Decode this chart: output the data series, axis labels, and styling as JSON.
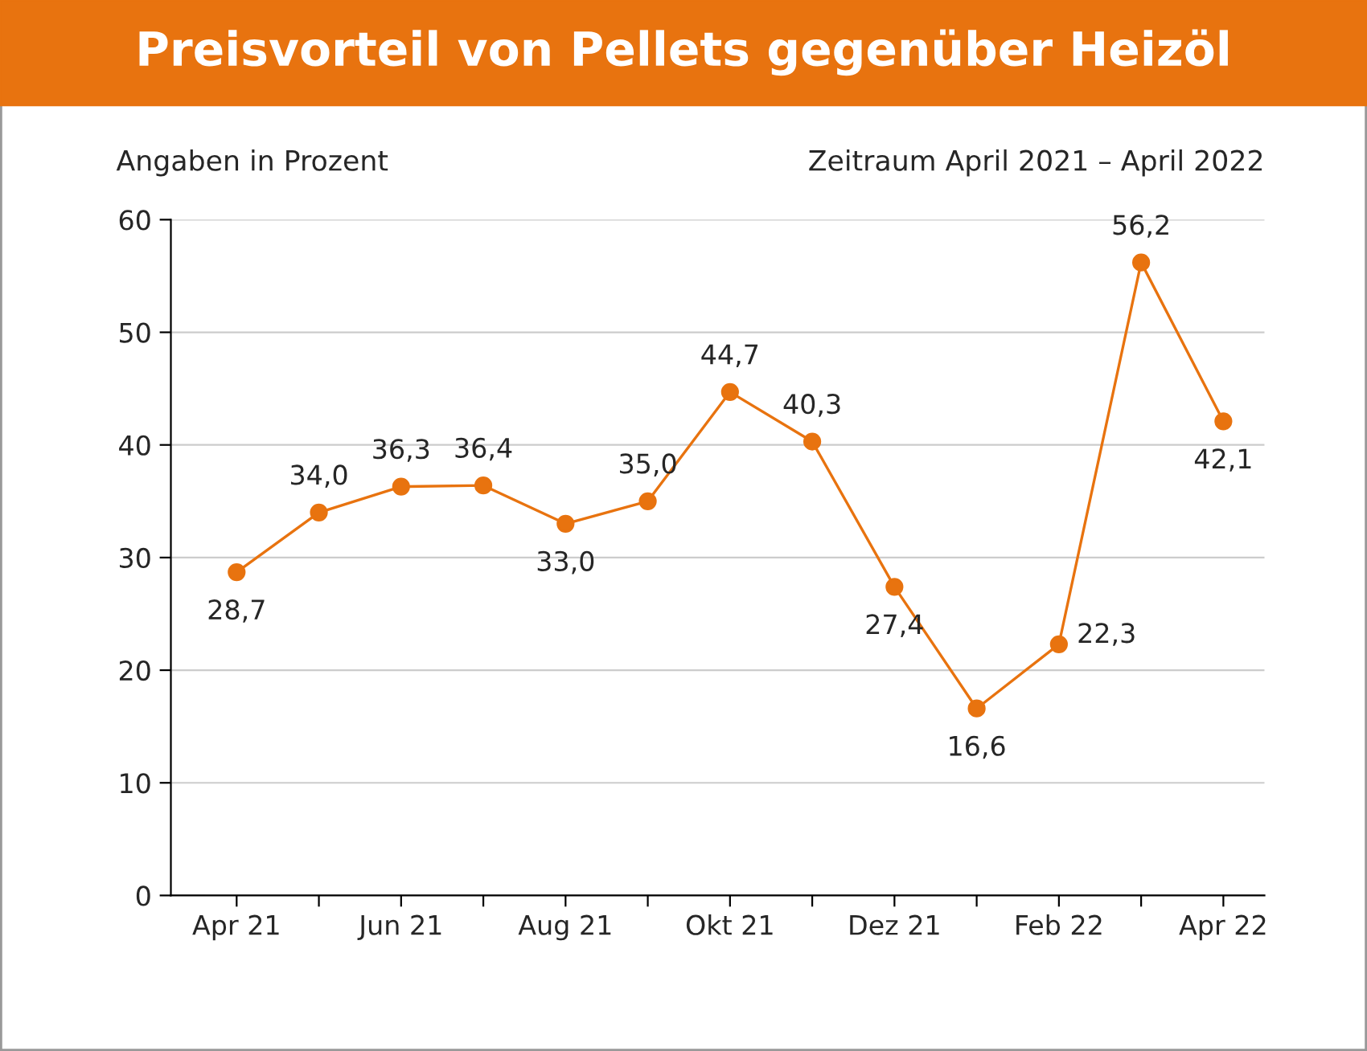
{
  "chart_data": {
    "type": "line",
    "title": "Preisvorteil von Pellets gegenüber Heizöl",
    "subtitle": "Angaben in Prozent",
    "annotations": [
      "Zeitraum April 2021 – April 2022"
    ],
    "categories": [
      "Apr 21",
      null,
      "Jun 21",
      null,
      "Aug 21",
      null,
      "Okt 21",
      null,
      "Dez 21",
      null,
      "Feb 22",
      null,
      "Apr 22"
    ],
    "series": [
      {
        "color": "#e8730f",
        "values": [
          28.7,
          34.0,
          36.3,
          36.4,
          33.0,
          35.0,
          44.7,
          40.3,
          27.4,
          16.6,
          22.3,
          56.2,
          42.1
        ],
        "value_labels": [
          "28,7",
          "34,0",
          "36,3",
          "36,4",
          "33,0",
          "35,0",
          "44,7",
          "40,3",
          "27,4",
          "16,6",
          "22,3",
          "56,2",
          "42,1"
        ]
      }
    ],
    "ylim": [
      0,
      60
    ],
    "yticks": [
      0,
      10,
      20,
      30,
      40,
      50,
      60
    ],
    "grid": "y",
    "marker": "circle",
    "line_style": "solid",
    "legend": false
  }
}
